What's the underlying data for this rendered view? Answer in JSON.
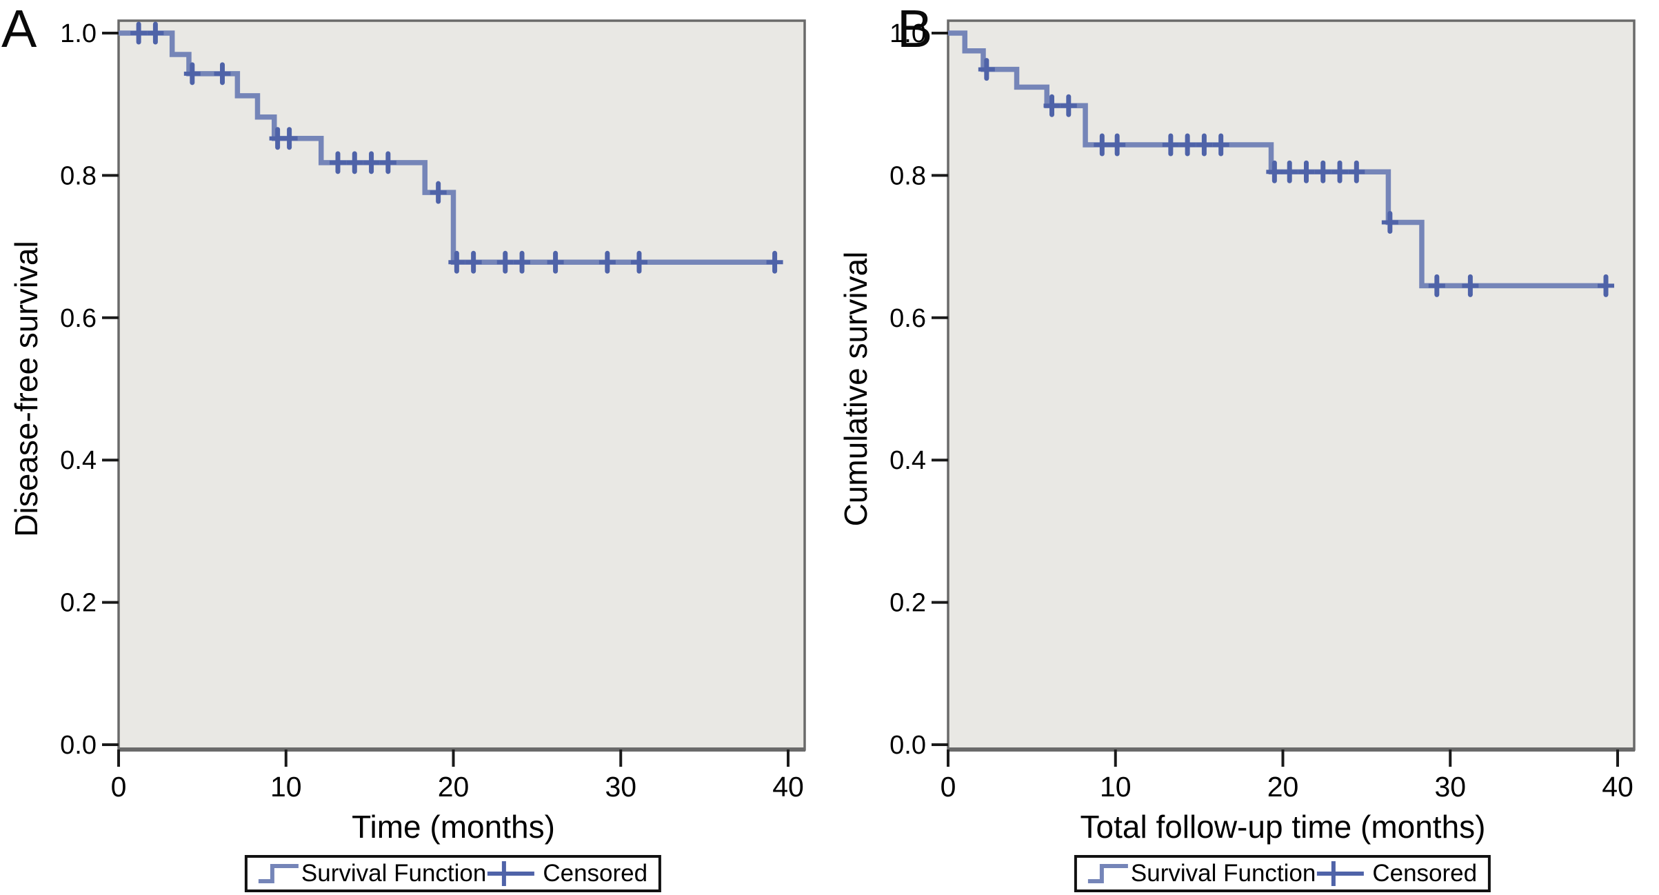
{
  "colors": {
    "curve": "#7585b8",
    "censor": "#4f63a8",
    "plot_bg": "#e9e8e4",
    "frame": "#6a6a6a",
    "tick": "#1a1a1a",
    "text": "#000000"
  },
  "chart_data": [
    {
      "type": "line",
      "subtype": "kaplan-meier-step",
      "panel_label": "A",
      "xlabel": "Time (months)",
      "ylabel": "Disease-free survival",
      "xlim": [
        0,
        40
      ],
      "ylim": [
        0.0,
        1.0
      ],
      "xticks": [
        0,
        10,
        20,
        30,
        40
      ],
      "yticks": [
        0.0,
        0.2,
        0.4,
        0.6,
        0.8,
        1.0
      ],
      "grid": false,
      "legend_position": "below",
      "steps": [
        [
          0,
          1.0
        ],
        [
          3.2,
          0.97
        ],
        [
          4.2,
          0.943
        ],
        [
          7.1,
          0.912
        ],
        [
          8.3,
          0.882
        ],
        [
          9.3,
          0.852
        ],
        [
          12.1,
          0.818
        ],
        [
          18.3,
          0.776
        ],
        [
          20.0,
          0.678
        ]
      ],
      "end_time": 39.2,
      "censored": [
        [
          1.2,
          1.0
        ],
        [
          2.2,
          1.0
        ],
        [
          4.4,
          0.943
        ],
        [
          6.2,
          0.943
        ],
        [
          9.5,
          0.852
        ],
        [
          10.2,
          0.852
        ],
        [
          13.1,
          0.818
        ],
        [
          14.1,
          0.818
        ],
        [
          15.1,
          0.818
        ],
        [
          16.1,
          0.818
        ],
        [
          19.1,
          0.776
        ],
        [
          20.2,
          0.678
        ],
        [
          21.2,
          0.678
        ],
        [
          23.1,
          0.678
        ],
        [
          24.1,
          0.678
        ],
        [
          26.1,
          0.678
        ],
        [
          29.2,
          0.678
        ],
        [
          31.1,
          0.678
        ],
        [
          39.2,
          0.678
        ]
      ],
      "legend": [
        "Survival Function",
        "Censored"
      ]
    },
    {
      "type": "line",
      "subtype": "kaplan-meier-step",
      "panel_label": "B",
      "xlabel": "Total follow-up time (months)",
      "ylabel": "Cumulative survival",
      "xlim": [
        0,
        40
      ],
      "ylim": [
        0.0,
        1.0
      ],
      "xticks": [
        0,
        10,
        20,
        30,
        40
      ],
      "yticks": [
        0.0,
        0.2,
        0.4,
        0.6,
        0.8,
        1.0
      ],
      "grid": false,
      "legend_position": "below",
      "steps": [
        [
          0,
          1.0
        ],
        [
          1.0,
          0.975
        ],
        [
          2.1,
          0.949
        ],
        [
          4.1,
          0.924
        ],
        [
          5.9,
          0.898
        ],
        [
          8.2,
          0.843
        ],
        [
          19.3,
          0.805
        ],
        [
          26.3,
          0.734
        ],
        [
          28.3,
          0.645
        ]
      ],
      "end_time": 39.3,
      "censored": [
        [
          2.3,
          0.949
        ],
        [
          6.2,
          0.898
        ],
        [
          7.2,
          0.898
        ],
        [
          9.2,
          0.843
        ],
        [
          10.1,
          0.843
        ],
        [
          13.3,
          0.843
        ],
        [
          14.3,
          0.843
        ],
        [
          15.3,
          0.843
        ],
        [
          16.3,
          0.843
        ],
        [
          19.5,
          0.805
        ],
        [
          20.4,
          0.805
        ],
        [
          21.4,
          0.805
        ],
        [
          22.4,
          0.805
        ],
        [
          23.4,
          0.805
        ],
        [
          24.4,
          0.805
        ],
        [
          26.4,
          0.734
        ],
        [
          29.2,
          0.645
        ],
        [
          31.2,
          0.645
        ],
        [
          39.3,
          0.645
        ]
      ],
      "legend": [
        "Survival Function",
        "Censored"
      ]
    }
  ]
}
